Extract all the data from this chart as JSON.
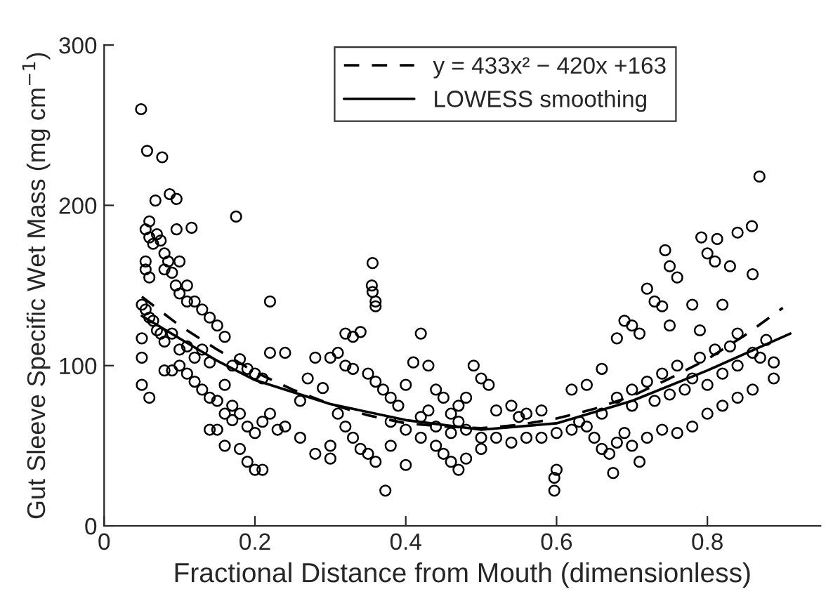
{
  "chart_data": {
    "type": "scatter",
    "xlabel": "Fractional Distance from Mouth (dimensionless)",
    "ylabel": "Gut Sleeve Specific Wet Mass (mg cm$^{−1}$)",
    "xlim": [
      0,
      0.95
    ],
    "ylim": [
      0,
      300
    ],
    "xticks": [
      {
        "value": 0,
        "label": "0"
      },
      0.2,
      0.4,
      0.6,
      0.8
    ],
    "yticks": [
      0,
      100,
      200,
      300
    ],
    "grid": false,
    "legend": "top",
    "marker": "circle",
    "series": [
      {
        "color": "#000000",
        "x": [
          0.049,
          0.057,
          0.077,
          0.068,
          0.087,
          0.096,
          0.175,
          0.096,
          0.116,
          0.055,
          0.06,
          0.06,
          0.065,
          0.07,
          0.075,
          0.08,
          0.08,
          0.085,
          0.09,
          0.1,
          0.11,
          0.11,
          0.12,
          0.13,
          0.14,
          0.095,
          0.1,
          0.055,
          0.055,
          0.06,
          0.05,
          0.055,
          0.06,
          0.065,
          0.07,
          0.075,
          0.08,
          0.09,
          0.1,
          0.11,
          0.12,
          0.13,
          0.14,
          0.15,
          0.16,
          0.17,
          0.18,
          0.19,
          0.2,
          0.21,
          0.22,
          0.24,
          0.22,
          0.05,
          0.05,
          0.05,
          0.06,
          0.08,
          0.09,
          0.1,
          0.11,
          0.12,
          0.13,
          0.14,
          0.15,
          0.16,
          0.17,
          0.18,
          0.19,
          0.2,
          0.21,
          0.22,
          0.23,
          0.15,
          0.16,
          0.17,
          0.14,
          0.19,
          0.2,
          0.21,
          0.18,
          0.16,
          0.24,
          0.26,
          0.27,
          0.29,
          0.28,
          0.3,
          0.356,
          0.355,
          0.356,
          0.36,
          0.36,
          0.373,
          0.32,
          0.33,
          0.34,
          0.31,
          0.32,
          0.33,
          0.35,
          0.36,
          0.37,
          0.38,
          0.39,
          0.4,
          0.41,
          0.42,
          0.43,
          0.44,
          0.45,
          0.46,
          0.47,
          0.48,
          0.5,
          0.52,
          0.54,
          0.56,
          0.58,
          0.49,
          0.5,
          0.51,
          0.52,
          0.31,
          0.32,
          0.33,
          0.34,
          0.35,
          0.36,
          0.38,
          0.4,
          0.42,
          0.44,
          0.45,
          0.46,
          0.47,
          0.48,
          0.5,
          0.38,
          0.4,
          0.42,
          0.43,
          0.44,
          0.46,
          0.47,
          0.48,
          0.54,
          0.55,
          0.56,
          0.58,
          0.6,
          0.3,
          0.28,
          0.26,
          0.3,
          0.597,
          0.597,
          0.6,
          0.869,
          0.859,
          0.84,
          0.792,
          0.813,
          0.744,
          0.75,
          0.76,
          0.8,
          0.81,
          0.83,
          0.86,
          0.72,
          0.73,
          0.74,
          0.78,
          0.82,
          0.71,
          0.69,
          0.7,
          0.68,
          0.75,
          0.79,
          0.84,
          0.888,
          0.888,
          0.87,
          0.878,
          0.675,
          0.65,
          0.66,
          0.67,
          0.68,
          0.69,
          0.7,
          0.71,
          0.72,
          0.74,
          0.76,
          0.78,
          0.8,
          0.82,
          0.84,
          0.86,
          0.62,
          0.63,
          0.64,
          0.66,
          0.68,
          0.7,
          0.72,
          0.74,
          0.76,
          0.78,
          0.8,
          0.82,
          0.84,
          0.86,
          0.7,
          0.73,
          0.75,
          0.77,
          0.79,
          0.81,
          0.83,
          0.66,
          0.64,
          0.62
        ],
        "values": [
          260,
          234,
          230,
          203,
          207,
          204,
          193,
          185,
          186,
          185,
          190,
          180,
          176,
          182,
          178,
          170,
          160,
          165,
          158,
          165,
          150,
          140,
          140,
          135,
          130,
          150,
          145,
          160,
          165,
          155,
          138,
          135,
          130,
          128,
          122,
          120,
          115,
          120,
          110,
          112,
          105,
          110,
          102,
          125,
          118,
          100,
          104,
          98,
          95,
          92,
          108,
          108,
          140,
          117,
          105,
          88,
          80,
          97,
          97,
          100,
          95,
          90,
          85,
          80,
          78,
          88,
          75,
          70,
          62,
          58,
          65,
          70,
          60,
          60,
          70,
          66,
          60,
          40,
          35,
          35,
          48,
          50,
          62,
          78,
          92,
          86,
          105,
          105,
          164,
          150,
          146,
          140,
          137,
          22,
          120,
          118,
          121,
          108,
          100,
          98,
          95,
          90,
          85,
          80,
          75,
          88,
          102,
          120,
          100,
          85,
          80,
          70,
          65,
          60,
          55,
          55,
          52,
          55,
          55,
          100,
          92,
          88,
          72,
          70,
          62,
          55,
          48,
          45,
          40,
          65,
          60,
          55,
          50,
          45,
          40,
          35,
          42,
          48,
          50,
          38,
          68,
          72,
          62,
          58,
          75,
          80,
          75,
          68,
          70,
          72,
          58,
          50,
          45,
          55,
          42,
          30,
          22,
          35,
          218,
          187,
          183,
          180,
          179,
          172,
          162,
          155,
          170,
          165,
          162,
          157,
          148,
          140,
          137,
          138,
          138,
          120,
          128,
          125,
          117,
          125,
          122,
          120,
          92,
          102,
          105,
          116,
          33,
          55,
          48,
          45,
          52,
          58,
          50,
          40,
          55,
          60,
          58,
          62,
          70,
          75,
          80,
          85,
          60,
          65,
          62,
          70,
          80,
          85,
          90,
          95,
          100,
          92,
          88,
          95,
          100,
          108,
          75,
          78,
          82,
          85,
          105,
          110,
          112,
          98,
          88,
          85
        ]
      },
      {
        "type": "line",
        "name": "y = 433x² − 420x +163",
        "color": "#000000",
        "line_style": "dashed",
        "marker": "none",
        "x": [
          0.05,
          0.1,
          0.15,
          0.2,
          0.25,
          0.3,
          0.35,
          0.4,
          0.45,
          0.5,
          0.55,
          0.6,
          0.65,
          0.7,
          0.75,
          0.8,
          0.85,
          0.9
        ],
        "values": [
          143,
          125,
          110,
          96,
          85,
          76,
          69,
          64,
          62,
          61,
          63,
          67,
          73,
          81,
          92,
          104,
          119,
          136
        ]
      },
      {
        "type": "line",
        "name": "LOWESS smoothing",
        "color": "#000000",
        "line_style": "solid",
        "marker": "none",
        "x": [
          0.05,
          0.1,
          0.15,
          0.2,
          0.3,
          0.4,
          0.5,
          0.6,
          0.7,
          0.8,
          0.91
        ],
        "values": [
          131,
          117,
          103,
          91,
          76,
          66,
          60,
          64,
          78,
          97,
          120
        ]
      }
    ]
  }
}
